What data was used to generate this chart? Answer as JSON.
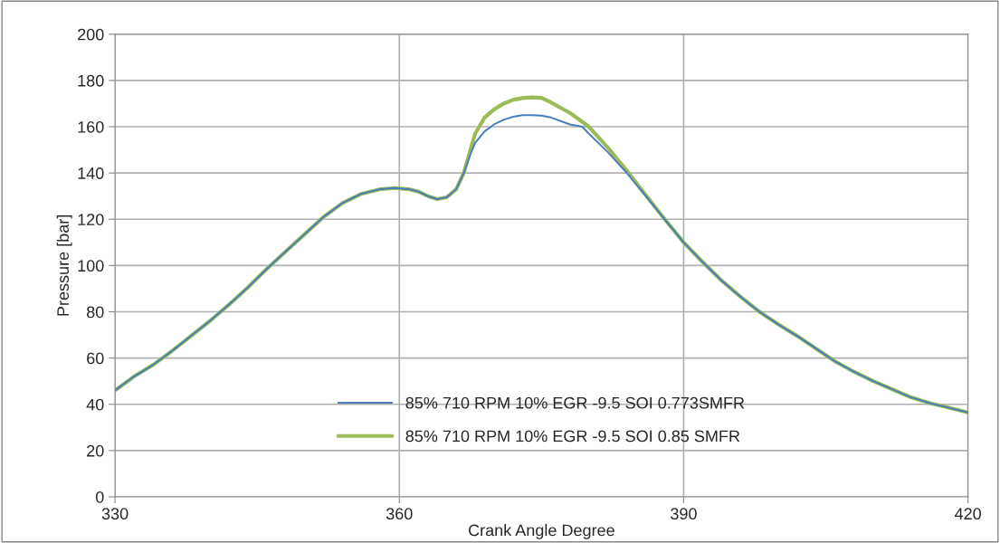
{
  "chart_data": {
    "type": "line",
    "xlabel": "Crank Angle Degree",
    "ylabel": "Pressure [bar]",
    "xlim": [
      330,
      420
    ],
    "xticks": [
      330,
      360,
      390,
      420
    ],
    "ylim": [
      0,
      200
    ],
    "yticks": [
      0,
      20,
      40,
      60,
      80,
      100,
      120,
      140,
      160,
      180,
      200
    ],
    "grid": true,
    "legend": "bottom",
    "marker": "none",
    "line_style": "solid",
    "series": [
      {
        "name": "85% 710 RPM 10% EGR -9.5 SOI 0.773SMFR",
        "color": "#4a7ebb",
        "x": [
          330,
          332,
          334,
          336,
          338,
          340,
          342,
          344,
          346,
          348,
          350,
          352,
          354,
          356,
          358,
          359.5,
          361,
          362,
          363,
          364,
          365,
          366,
          366.8,
          367.5,
          368,
          369,
          370,
          371,
          372,
          373,
          374,
          375,
          376,
          378,
          379.3,
          380,
          382,
          384,
          386,
          388,
          390,
          392,
          394,
          396,
          398,
          400,
          402,
          404,
          406,
          408,
          410,
          412,
          414,
          416,
          418,
          420
        ],
        "values": [
          46,
          52,
          57,
          63,
          69.5,
          76,
          83,
          90.5,
          98.5,
          106,
          113.5,
          121,
          127,
          131,
          133,
          133.5,
          133,
          132,
          130,
          128.7,
          129.5,
          133,
          140,
          148,
          153,
          158,
          161,
          163,
          164.3,
          165,
          165,
          164.8,
          164,
          161,
          160,
          157,
          149,
          140,
          130,
          120,
          110,
          101.5,
          93.5,
          86.5,
          80,
          74.5,
          69.5,
          64,
          58.5,
          54,
          50,
          46.5,
          43,
          40.5,
          38.5,
          36.5
        ]
      },
      {
        "name": "85% 710 RPM 10% EGR -9.5 SOI 0.85 SMFR",
        "color": "#9bbb59",
        "x": [
          330,
          332,
          334,
          336,
          338,
          340,
          342,
          344,
          346,
          348,
          350,
          352,
          354,
          356,
          358,
          359.5,
          361,
          362,
          363,
          364,
          365,
          366,
          366.8,
          367.5,
          368,
          369,
          370,
          371,
          372,
          373,
          374,
          375,
          376,
          378,
          380,
          382,
          384,
          386,
          388,
          390,
          392,
          394,
          396,
          398,
          400,
          402,
          404,
          406,
          408,
          410,
          412,
          414,
          416,
          418,
          420
        ],
        "values": [
          46,
          52,
          57,
          63,
          69.5,
          76,
          83,
          90.5,
          98.5,
          106,
          113.5,
          121,
          127,
          131,
          133,
          133.5,
          133,
          132,
          130,
          128.7,
          129.5,
          133,
          140,
          150,
          157,
          164,
          167.5,
          170,
          171.6,
          172.4,
          172.7,
          172.5,
          170.5,
          166,
          160,
          151,
          141,
          130.5,
          120,
          110,
          101.5,
          93.5,
          86.5,
          80,
          74.5,
          69.5,
          64,
          58.5,
          54,
          50,
          46.5,
          43,
          40.5,
          38.5,
          36.5
        ]
      }
    ]
  }
}
